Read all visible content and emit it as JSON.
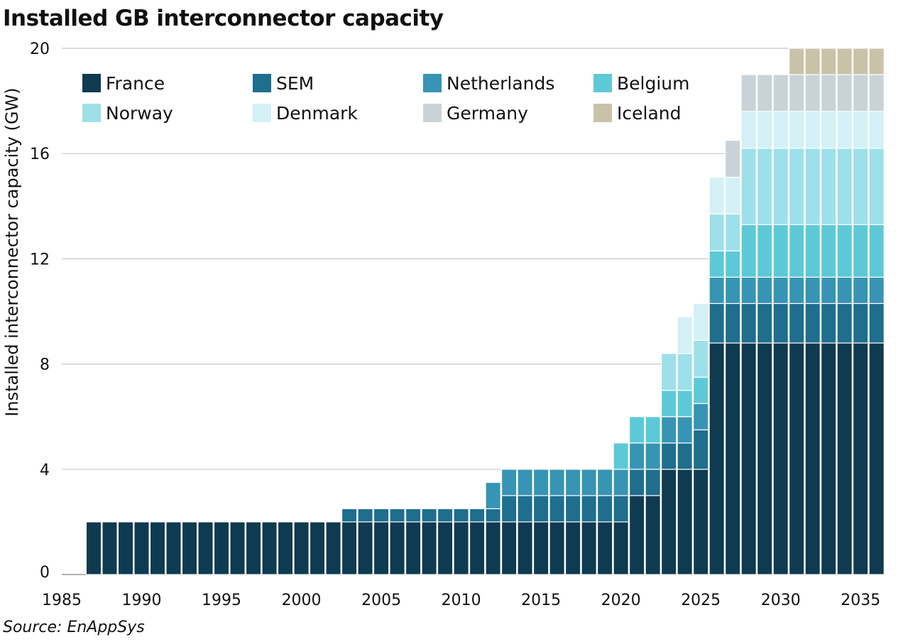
{
  "chart_data": {
    "type": "bar",
    "stacked": true,
    "title": "Installed GB interconnector capacity",
    "ylabel": "Installed interconnector capacity (GW)",
    "xlabel": "",
    "ylim": [
      0,
      20
    ],
    "yticks": [
      0,
      4,
      8,
      12,
      16,
      20
    ],
    "xticks": [
      1985,
      1990,
      1995,
      2000,
      2005,
      2010,
      2015,
      2020,
      2025,
      2030,
      2035
    ],
    "grid": "horizontal",
    "legend": "top-left, 4 columns",
    "source": "Source: EnAppSys",
    "categories": [
      1987,
      1988,
      1989,
      1990,
      1991,
      1992,
      1993,
      1994,
      1995,
      1996,
      1997,
      1998,
      1999,
      2000,
      2001,
      2002,
      2003,
      2004,
      2005,
      2006,
      2007,
      2008,
      2009,
      2010,
      2011,
      2012,
      2013,
      2014,
      2015,
      2016,
      2017,
      2018,
      2019,
      2020,
      2021,
      2022,
      2023,
      2024,
      2025,
      2026,
      2027,
      2028,
      2029,
      2030,
      2031,
      2032,
      2033,
      2034,
      2035,
      2036
    ],
    "series": [
      {
        "name": "France",
        "color": "#0f3a4f",
        "values": [
          2,
          2,
          2,
          2,
          2,
          2,
          2,
          2,
          2,
          2,
          2,
          2,
          2,
          2,
          2,
          2,
          2,
          2,
          2,
          2,
          2,
          2,
          2,
          2,
          2,
          2,
          2,
          2,
          2,
          2,
          2,
          2,
          2,
          2,
          3,
          3,
          4,
          4,
          4,
          8.8,
          8.8,
          8.8,
          8.8,
          8.8,
          8.8,
          8.8,
          8.8,
          8.8,
          8.8,
          8.8
        ]
      },
      {
        "name": "SEM",
        "color": "#1e6e8e",
        "values": [
          0,
          0,
          0,
          0,
          0,
          0,
          0,
          0,
          0,
          0,
          0,
          0,
          0,
          0,
          0,
          0,
          0.5,
          0.5,
          0.5,
          0.5,
          0.5,
          0.5,
          0.5,
          0.5,
          0.5,
          0.5,
          1,
          1,
          1,
          1,
          1,
          1,
          1,
          1,
          1,
          1,
          1,
          1,
          1.5,
          1.5,
          1.5,
          1.5,
          1.5,
          1.5,
          1.5,
          1.5,
          1.5,
          1.5,
          1.5,
          1.5
        ]
      },
      {
        "name": "Netherlands",
        "color": "#3794b4",
        "values": [
          0,
          0,
          0,
          0,
          0,
          0,
          0,
          0,
          0,
          0,
          0,
          0,
          0,
          0,
          0,
          0,
          0,
          0,
          0,
          0,
          0,
          0,
          0,
          0,
          0,
          1,
          1,
          1,
          1,
          1,
          1,
          1,
          1,
          1,
          1,
          1,
          1,
          1,
          1,
          1,
          1,
          1,
          1,
          1,
          1,
          1,
          1,
          1,
          1,
          1
        ]
      },
      {
        "name": "Belgium",
        "color": "#5ec9d6",
        "values": [
          0,
          0,
          0,
          0,
          0,
          0,
          0,
          0,
          0,
          0,
          0,
          0,
          0,
          0,
          0,
          0,
          0,
          0,
          0,
          0,
          0,
          0,
          0,
          0,
          0,
          0,
          0,
          0,
          0,
          0,
          0,
          0,
          0,
          1,
          1,
          1,
          1,
          1,
          1,
          1,
          1,
          2,
          2,
          2,
          2,
          2,
          2,
          2,
          2,
          2
        ]
      },
      {
        "name": "Norway",
        "color": "#9de0e9",
        "values": [
          0,
          0,
          0,
          0,
          0,
          0,
          0,
          0,
          0,
          0,
          0,
          0,
          0,
          0,
          0,
          0,
          0,
          0,
          0,
          0,
          0,
          0,
          0,
          0,
          0,
          0,
          0,
          0,
          0,
          0,
          0,
          0,
          0,
          0,
          0,
          0,
          1.4,
          1.4,
          1.4,
          1.4,
          1.4,
          2.9,
          2.9,
          2.9,
          2.9,
          2.9,
          2.9,
          2.9,
          2.9,
          2.9
        ]
      },
      {
        "name": "Denmark",
        "color": "#d3f1f6",
        "values": [
          0,
          0,
          0,
          0,
          0,
          0,
          0,
          0,
          0,
          0,
          0,
          0,
          0,
          0,
          0,
          0,
          0,
          0,
          0,
          0,
          0,
          0,
          0,
          0,
          0,
          0,
          0,
          0,
          0,
          0,
          0,
          0,
          0,
          0,
          0,
          0,
          0,
          1.4,
          1.4,
          1.4,
          1.4,
          1.4,
          1.4,
          1.4,
          1.4,
          1.4,
          1.4,
          1.4,
          1.4,
          1.4
        ]
      },
      {
        "name": "Germany",
        "color": "#c9d3d7",
        "values": [
          0,
          0,
          0,
          0,
          0,
          0,
          0,
          0,
          0,
          0,
          0,
          0,
          0,
          0,
          0,
          0,
          0,
          0,
          0,
          0,
          0,
          0,
          0,
          0,
          0,
          0,
          0,
          0,
          0,
          0,
          0,
          0,
          0,
          0,
          0,
          0,
          0,
          0,
          0,
          0,
          1.4,
          1.4,
          1.4,
          1.4,
          1.4,
          1.4,
          1.4,
          1.4,
          1.4,
          1.4
        ]
      },
      {
        "name": "Iceland",
        "color": "#c9c2a8",
        "values": [
          0,
          0,
          0,
          0,
          0,
          0,
          0,
          0,
          0,
          0,
          0,
          0,
          0,
          0,
          0,
          0,
          0,
          0,
          0,
          0,
          0,
          0,
          0,
          0,
          0,
          0,
          0,
          0,
          0,
          0,
          0,
          0,
          0,
          0,
          0,
          0,
          0,
          0,
          0,
          0,
          0,
          0,
          0,
          0,
          1,
          1,
          1,
          1,
          1,
          1
        ]
      }
    ]
  }
}
